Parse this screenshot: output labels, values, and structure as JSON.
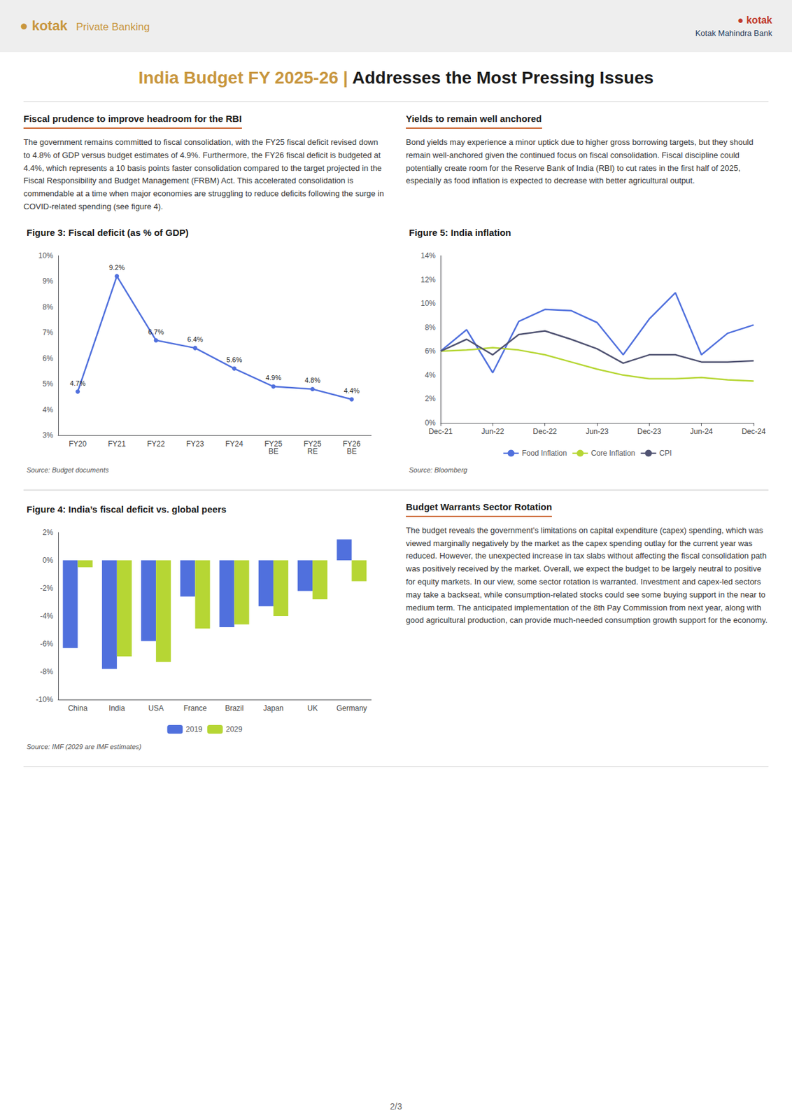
{
  "header": [
    "●  kotak",
    "Private Banking",
    "●  kotak",
    "Kotak Mahindra Bank"
  ],
  "page_title": [
    "India Budget FY 2025-26 | ",
    "Addresses the Most Pressing Issues"
  ],
  "sections": [
    {
      "title": "Fiscal prudence to improve headroom for the RBI",
      "text": "The government remains committed to fiscal consolidation, with the FY25 fiscal deficit revised down to 4.8% of GDP versus budget estimates of 4.9%. Furthermore, the FY26 fiscal deficit is budgeted at 4.4%, which represents a 10 basis points faster consolidation compared to the target projected in the Fiscal Responsibility and Budget Management (FRBM) Act. This accelerated consolidation is commendable at a time when major economies are struggling to reduce deficits following the surge in COVID-related spending (see figure 4)."
    },
    {
      "title": "Yields to remain well anchored",
      "text": "Bond yields may experience a minor uptick due to higher gross borrowing targets, but they should remain well-anchored given the continued focus on fiscal consolidation. Fiscal discipline could potentially create room for the Reserve Bank of India (RBI) to cut rates in the first half of 2025, especially as food inflation is expected to decrease with better agricultural output."
    },
    {
      "title": "Budget Warrants Sector Rotation",
      "text": "The budget reveals the government’s limitations on capital expenditure (capex) spending, which was viewed marginally negatively by the market as the capex spending outlay for the current year was reduced. However, the unexpected increase in tax slabs without affecting the fiscal consolidation path was positively received by the market. Overall, we expect the budget to be largely neutral to positive for equity markets. In our view, some sector rotation is warranted. Investment and capex-led sectors may take a backseat, while consumption-related stocks could see some buying support in the near to medium term. The anticipated implementation of the 8th Pay Commission from next year, along with good agricultural production, can provide much-needed consumption growth support for the economy."
    }
  ],
  "page_number": "2/3",
  "chart_data": [
    {
      "type": "line",
      "title": "Figure 3: Fiscal deficit (as % of GDP)",
      "categories": [
        "FY20",
        "FY21",
        "FY22",
        "FY23",
        "FY24",
        "FY25\nBE",
        "FY25\nRE",
        "FY26\nBE"
      ],
      "values": [
        4.7,
        9.2,
        6.7,
        6.4,
        5.6,
        4.9,
        4.8,
        4.4
      ],
      "value_labels": [
        "4.7%",
        "9.2%",
        "6.7%",
        "6.4%",
        "5.6%",
        "4.9%",
        "4.8%",
        "4.4%"
      ],
      "ylim": [
        3,
        10
      ],
      "yticks": [
        {
          "value": 3,
          "label": "3%"
        },
        {
          "value": 4,
          "label": "4%"
        },
        {
          "value": 5,
          "label": "5%"
        },
        {
          "value": 6,
          "label": "6%"
        },
        {
          "value": 7,
          "label": "7%"
        },
        {
          "value": 8,
          "label": "8%"
        },
        {
          "value": 9,
          "label": "9%"
        },
        {
          "value": 10,
          "label": "10%"
        }
      ],
      "grid": false,
      "data_labels": true,
      "marker": "circle",
      "annotations": [
        "Source: Budget documents"
      ]
    },
    {
      "type": "line",
      "title": "Figure 5: India inflation",
      "categories": [
        "Dec-21",
        null,
        "Jun-22",
        null,
        "Dec-22",
        null,
        "Jun-23",
        null,
        "Dec-23",
        null,
        "Jun-24",
        null,
        "Dec-24"
      ],
      "series": [
        {
          "name": "Food Inflation",
          "values": [
            6.0,
            7.8,
            4.2,
            8.5,
            9.5,
            9.4,
            8.4,
            5.7,
            8.7,
            10.9,
            5.7,
            7.5,
            8.2
          ]
        },
        {
          "name": "Core Inflation",
          "values": [
            6.0,
            6.1,
            6.3,
            6.1,
            5.7,
            5.1,
            4.5,
            4.0,
            3.7,
            3.7,
            3.8,
            3.6,
            3.5
          ]
        },
        {
          "name": "CPI",
          "values": [
            6.0,
            7.0,
            5.7,
            7.4,
            7.7,
            7.0,
            6.2,
            5.0,
            5.7,
            5.7,
            5.1,
            5.1,
            5.2
          ]
        }
      ],
      "ylim": [
        0,
        14
      ],
      "yticks": [
        {
          "value": 0,
          "label": "0%"
        },
        {
          "value": 2,
          "label": "2%"
        },
        {
          "value": 4,
          "label": "4%"
        },
        {
          "value": 6,
          "label": "6%"
        },
        {
          "value": 8,
          "label": "8%"
        },
        {
          "value": 10,
          "label": "10%"
        },
        {
          "value": 12,
          "label": "12%"
        },
        {
          "value": 14,
          "label": "14%"
        }
      ],
      "grid": false,
      "legend": "bottom",
      "annotations": [
        "Source: Bloomberg"
      ]
    },
    {
      "type": "bar",
      "title": "Figure 4: India’s fiscal deficit vs. global peers",
      "categories": [
        "China",
        "India",
        "USA",
        "France",
        "Brazil",
        "Japan",
        "UK",
        "Germany"
      ],
      "series": [
        {
          "name": "2019",
          "values": [
            -6.3,
            -7.8,
            -5.8,
            -2.6,
            -4.8,
            -3.3,
            -2.2,
            1.5
          ]
        },
        {
          "name": "2029",
          "values": [
            -0.5,
            -6.9,
            -7.3,
            -4.9,
            -4.6,
            -4.0,
            -2.8,
            -1.5
          ]
        }
      ],
      "ylim": [
        -10,
        2
      ],
      "yticks": [
        {
          "value": -10,
          "label": "-10%"
        },
        {
          "value": -8,
          "label": "-8%"
        },
        {
          "value": -6,
          "label": "-6%"
        },
        {
          "value": -4,
          "label": "-4%"
        },
        {
          "value": -2,
          "label": "-2%"
        },
        {
          "value": 0,
          "label": "0%"
        },
        {
          "value": 2,
          "label": "2%"
        }
      ],
      "grid": false,
      "legend": "bottom",
      "annotations": [
        "Source: IMF (2029 are IMF estimates)"
      ]
    }
  ]
}
